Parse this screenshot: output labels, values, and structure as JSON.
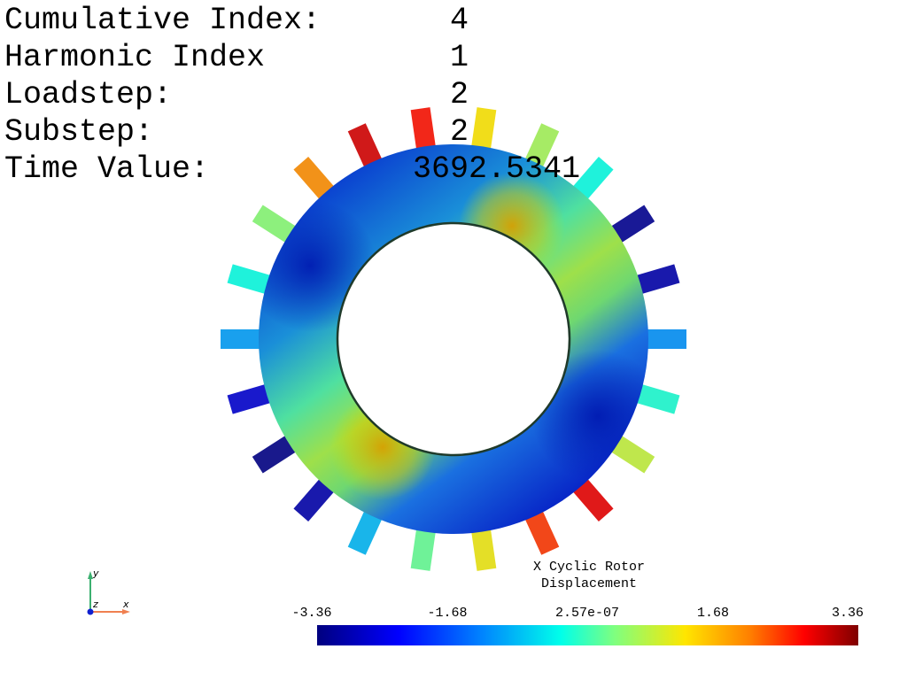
{
  "info": [
    {
      "label": "Cumulative Index:",
      "value": "4"
    },
    {
      "label": "Harmonic Index",
      "value": "1"
    },
    {
      "label": "Loadstep:",
      "value": "2"
    },
    {
      "label": "Substep:",
      "value": "2"
    },
    {
      "label": "Time Value:",
      "value": "3692.5341"
    }
  ],
  "colorbar": {
    "title_line1": "X Cyclic Rotor",
    "title_line2": "Displacement",
    "ticks": [
      "-3.36",
      "-1.68",
      "2.57e-07",
      "1.68",
      "3.36"
    ],
    "min": -3.36,
    "max": 3.36
  },
  "axes": {
    "y": "y",
    "z": "z",
    "x": "x"
  },
  "model": {
    "blade_count": 22,
    "blade_values": [
      -1.1,
      -0.3,
      0.4,
      1.9,
      2.9,
      2.6,
      1.2,
      0.6,
      -0.3,
      -3.2,
      -3.0,
      -1.2,
      -0.2,
      0.8,
      2.8,
      2.4,
      1.1,
      0.2,
      -0.9,
      -3.0,
      -3.3,
      -2.7
    ]
  }
}
